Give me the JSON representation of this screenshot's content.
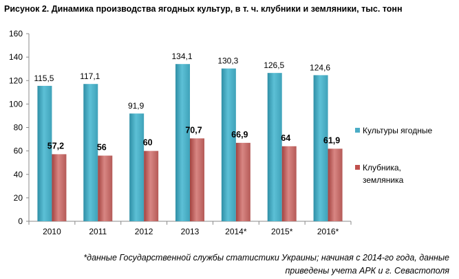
{
  "title": "Рисунок 2. Динамика производства ягодных культур, в т. ч. клубники и земляники, тыс. тонн",
  "footnote": {
    "line1": "*данные Государственной службы статистики Украины; начиная с 2014-го года, данные",
    "line2": "приведены учета АРК и г. Севастополя"
  },
  "chart_data": {
    "type": "bar",
    "title": "Рисунок 2. Динамика производства ягодных культур, в т. ч. клубники и земляники, тыс. тонн",
    "xlabel": "",
    "ylabel": "",
    "categories": [
      "2010",
      "2011",
      "2012",
      "2013",
      "2014*",
      "2015*",
      "2016*"
    ],
    "series": [
      {
        "name": "Культуры ягодные",
        "values": [
          115.5,
          117.1,
          91.9,
          134.1,
          130.3,
          126.5,
          124.6
        ],
        "labels": [
          "115,5",
          "117,1",
          "91,9",
          "134,1",
          "130,3",
          "126,5",
          "124,6"
        ],
        "color": "#4bacc6",
        "label_bold": false
      },
      {
        "name": "Клубника, земляника",
        "legend_lines": [
          "Клубника,",
          "земляника"
        ],
        "values": [
          57.2,
          56,
          60,
          70.7,
          66.9,
          64,
          61.9
        ],
        "labels": [
          "57,2",
          "56",
          "60",
          "70,7",
          "66,9",
          "64",
          "61,9"
        ],
        "color": "#c0504d",
        "label_bold": true
      }
    ],
    "ylim": [
      0,
      160
    ],
    "yticks": [
      0,
      20,
      40,
      60,
      80,
      100,
      120,
      140,
      160
    ],
    "grid": false,
    "legend": "right"
  }
}
